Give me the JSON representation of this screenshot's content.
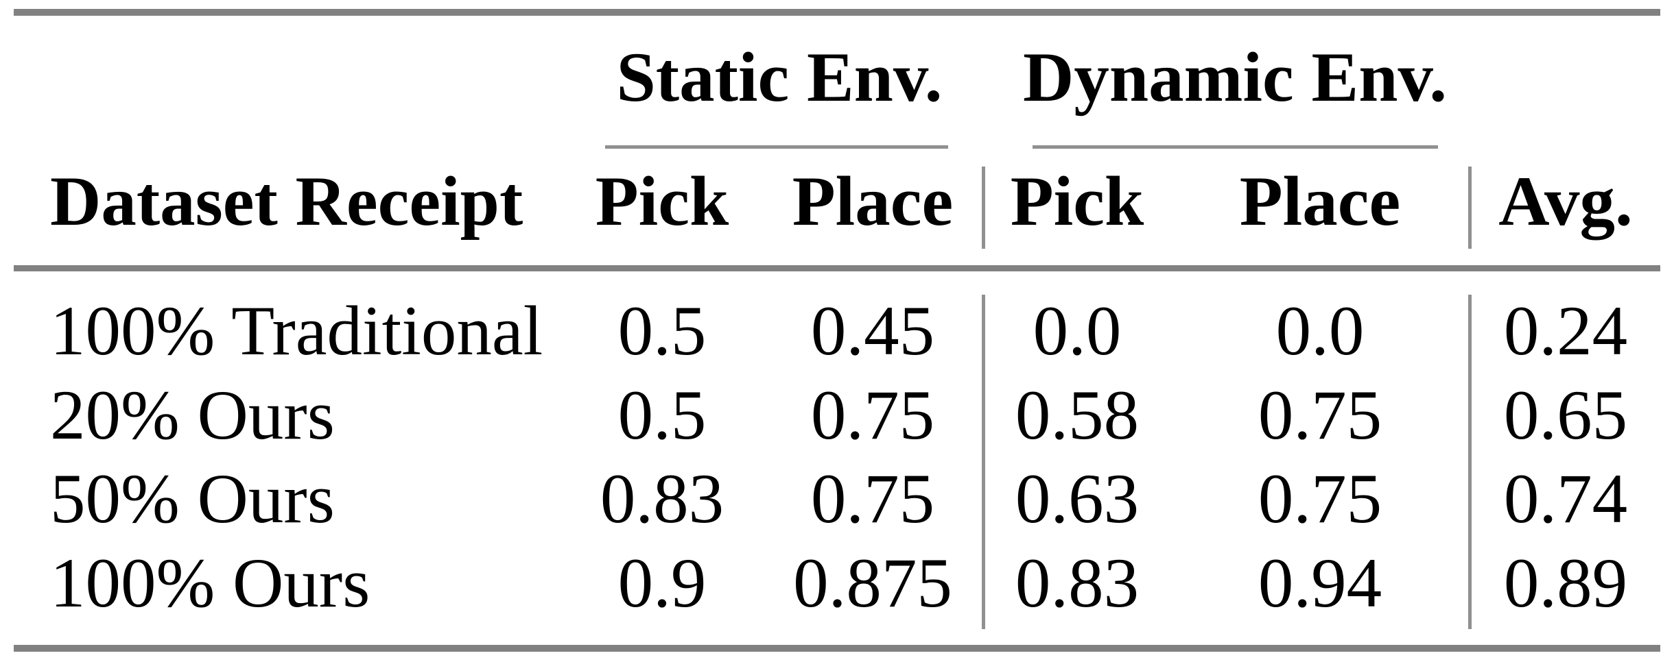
{
  "table": {
    "group_headers": [
      {
        "label": "Static Env."
      },
      {
        "label": "Dynamic Env."
      }
    ],
    "column_headers": [
      "Dataset Receipt",
      "Pick",
      "Place",
      "Pick",
      "Place",
      "Avg."
    ],
    "rows": [
      {
        "cells": [
          "100% Traditional",
          "0.5",
          "0.45",
          "0.0",
          "0.0",
          "0.24"
        ]
      },
      {
        "cells": [
          "20% Ours",
          "0.5",
          "0.75",
          "0.58",
          "0.75",
          "0.65"
        ]
      },
      {
        "cells": [
          "50% Ours",
          "0.83",
          "0.75",
          "0.63",
          "0.75",
          "0.74"
        ]
      },
      {
        "cells": [
          "100% Ours",
          "0.9",
          "0.875",
          "0.83",
          "0.94",
          "0.89"
        ]
      }
    ]
  },
  "colors": {
    "background": "#ffffff",
    "text": "#000000",
    "rule_thick": "#818181",
    "rule_thin": "#909090"
  }
}
